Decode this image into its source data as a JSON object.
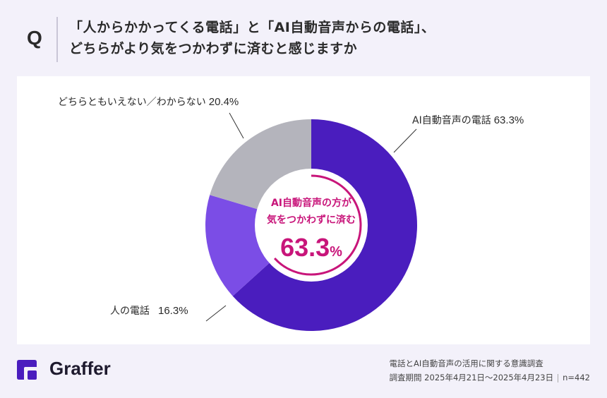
{
  "question": {
    "marker": "Q",
    "line1": "「人からかかってくる電話」と「AI自動音声からの電話」、",
    "line2": "どちらがより気をつかわずに済むと感じますか"
  },
  "chart_data": {
    "type": "pie",
    "subtype": "donut",
    "title": "「人からかかってくる電話」と「AI自動音声からの電話」、どちらがより気をつかわずに済むと感じますか",
    "categories": [
      "AI自動音声の電話",
      "人の電話",
      "どちらともいえない／わからない"
    ],
    "values": [
      63.3,
      16.3,
      20.4
    ],
    "unit": "%",
    "colors": [
      "#4A1DBE",
      "#7B4DE6",
      "#B4B4BC"
    ],
    "start_angle": "12 o'clock, clockwise",
    "center_annotation": {
      "line1": "AI自動音声の方が",
      "line2": "気をつかわずに済む",
      "value": "63.3",
      "unit": "%",
      "color": "#C8157A"
    }
  },
  "labels": {
    "ai": {
      "text": "AI自動音声の電話",
      "pct": "63.3%"
    },
    "human": {
      "text": "人の電話",
      "pct": "16.3%"
    },
    "neither": {
      "text": "どちらともいえない／わからない",
      "pct": "20.4%"
    }
  },
  "footer": {
    "brand": "Graffer",
    "survey_title": "電話とAI自動音声の活用に関する意識調査",
    "period": "調査期間 2025年4月21日〜2025年4月23日",
    "n": "n=442"
  }
}
